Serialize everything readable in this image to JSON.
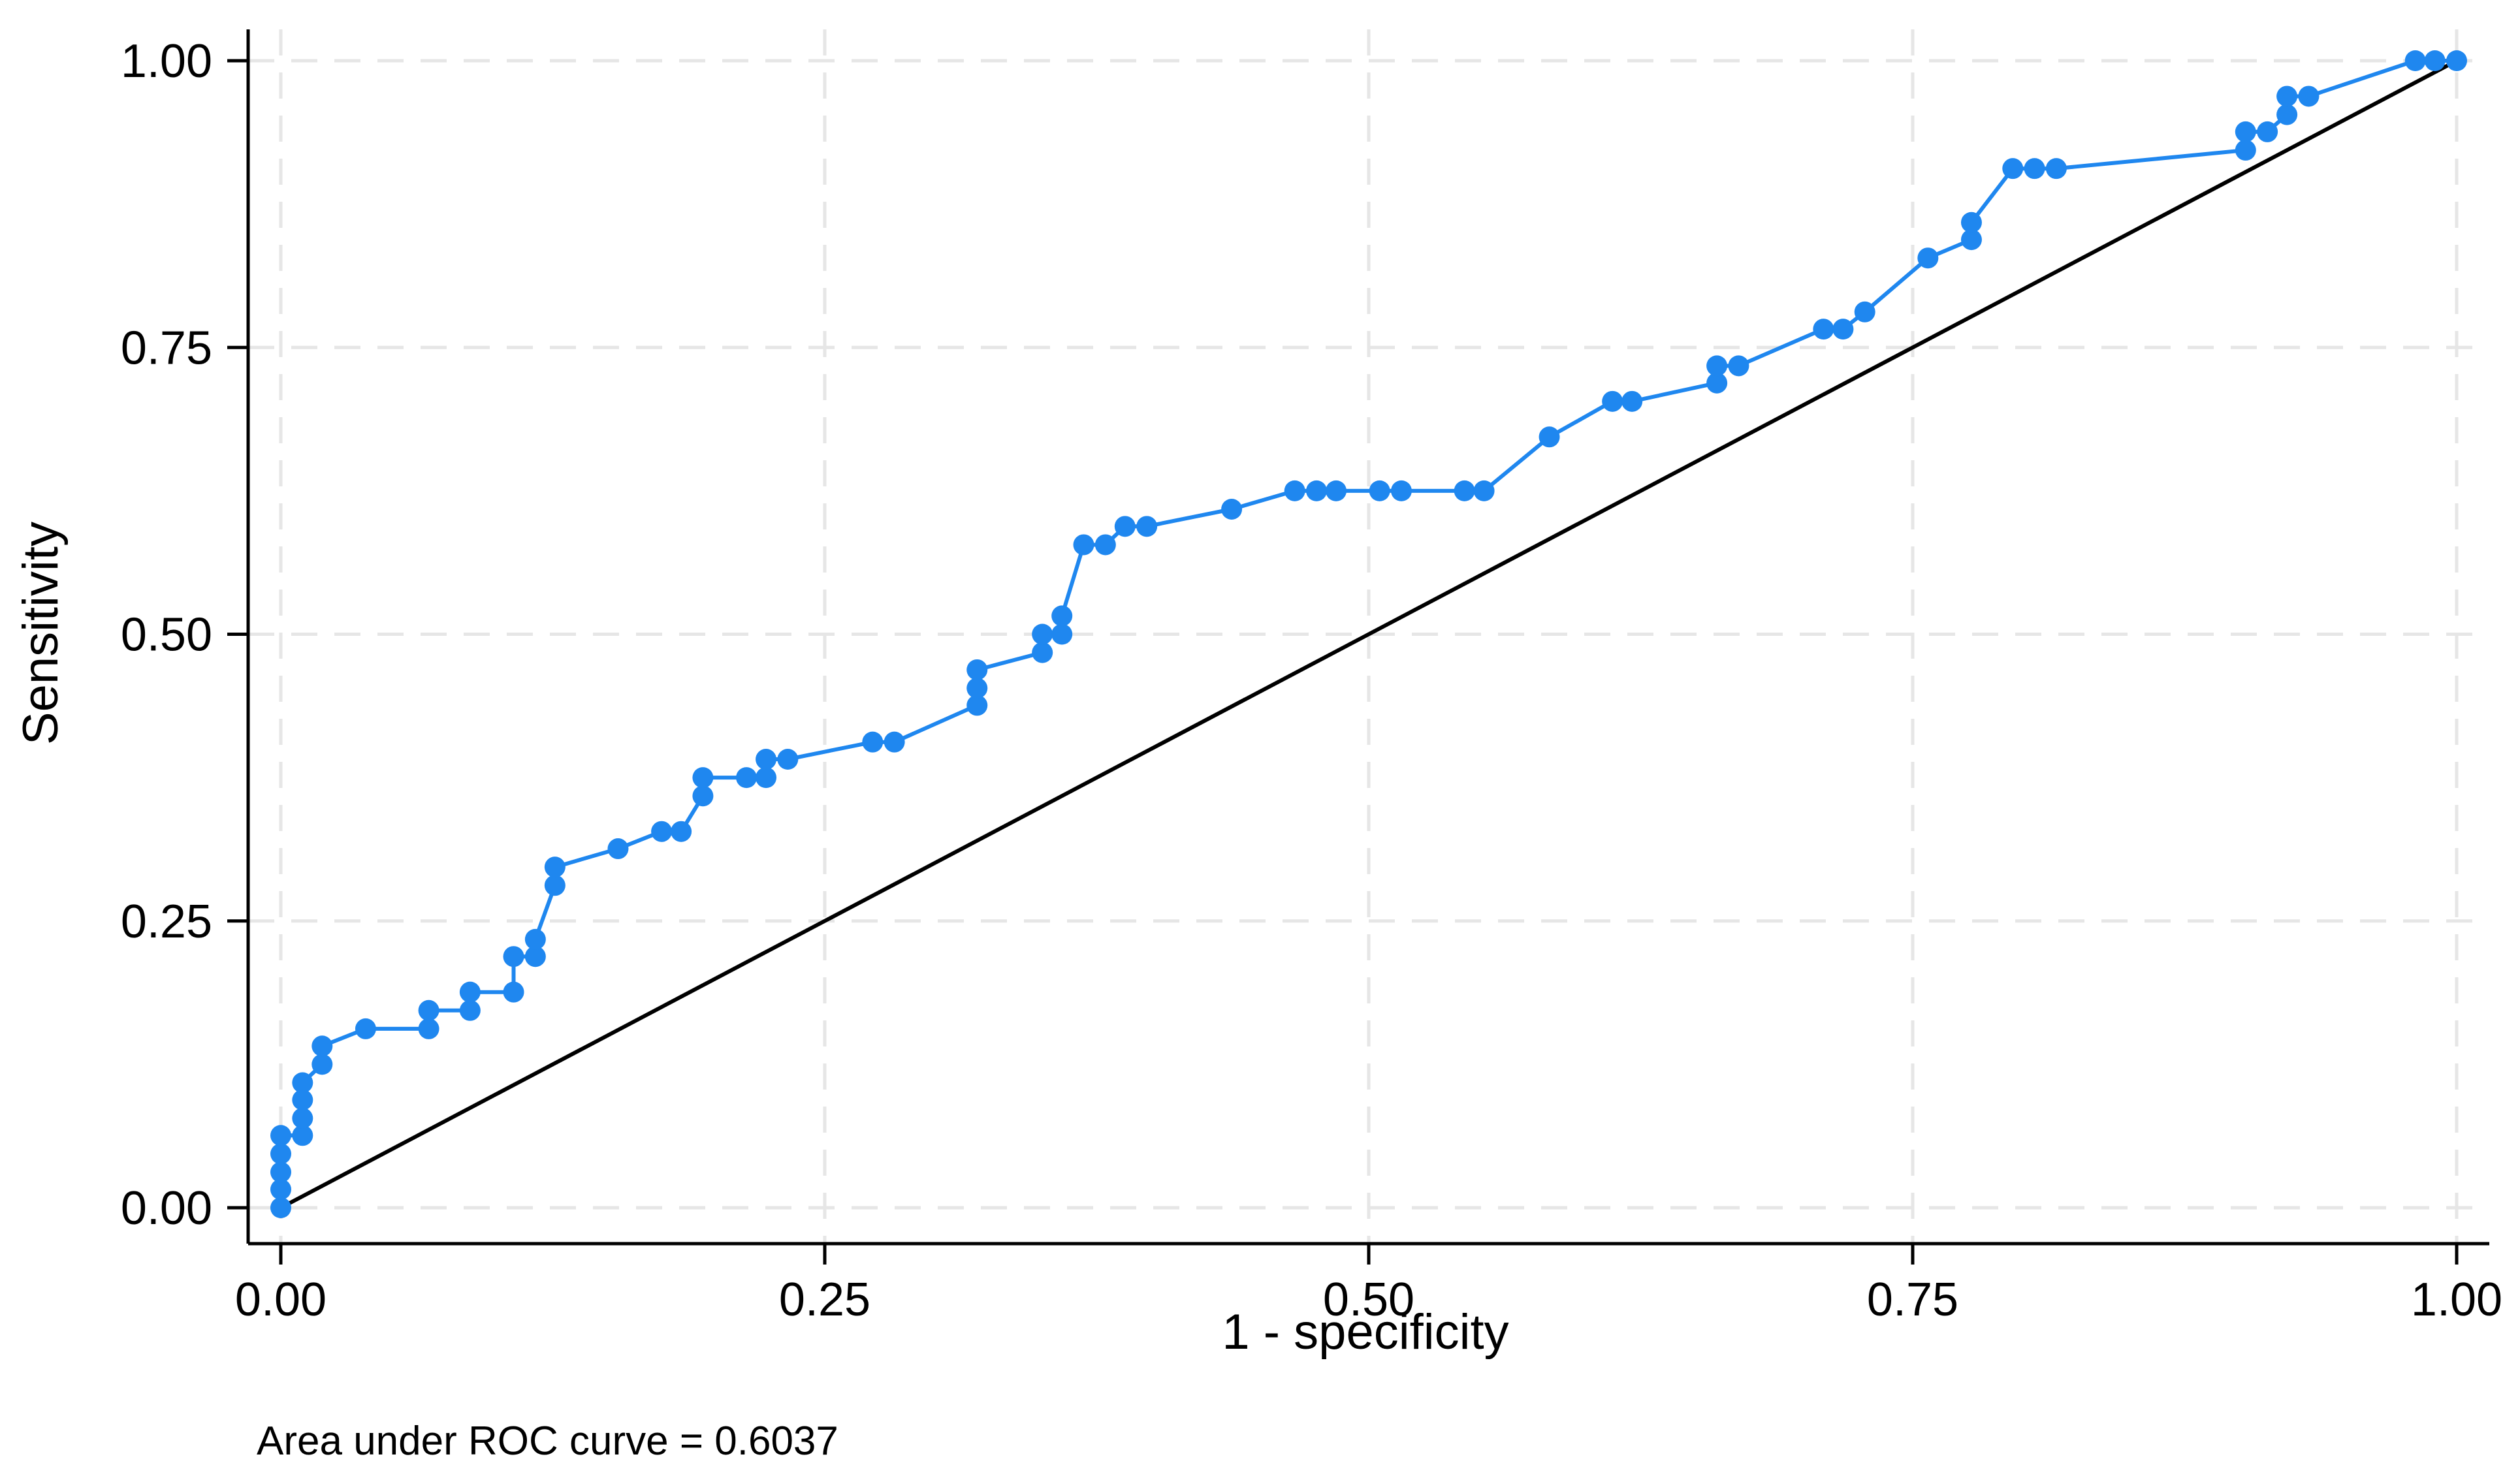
{
  "chart_data": {
    "type": "line",
    "xlabel": "1 - specificity",
    "ylabel": "Sensitivity",
    "xlim": [
      0,
      1
    ],
    "ylim": [
      0,
      1
    ],
    "xticks": [
      "0.00",
      "0.25",
      "0.50",
      "0.75",
      "1.00"
    ],
    "yticks": [
      "0.00",
      "0.25",
      "0.50",
      "0.75",
      "1.00"
    ],
    "grid": true,
    "note": "Area under ROC curve = 0.6037",
    "reference_line": {
      "from": [
        0,
        0
      ],
      "to": [
        1,
        1
      ],
      "color": "#000000"
    },
    "series": [
      {
        "color": "#1f87ef",
        "points": [
          [
            0.0,
            0.0
          ],
          [
            0.0,
            0.016
          ],
          [
            0.0,
            0.031
          ],
          [
            0.0,
            0.047
          ],
          [
            0.0,
            0.063
          ],
          [
            0.01,
            0.063
          ],
          [
            0.01,
            0.078
          ],
          [
            0.01,
            0.094
          ],
          [
            0.01,
            0.109
          ],
          [
            0.019,
            0.125
          ],
          [
            0.019,
            0.141
          ],
          [
            0.039,
            0.156
          ],
          [
            0.068,
            0.156
          ],
          [
            0.068,
            0.172
          ],
          [
            0.087,
            0.172
          ],
          [
            0.087,
            0.188
          ],
          [
            0.107,
            0.188
          ],
          [
            0.107,
            0.219
          ],
          [
            0.117,
            0.219
          ],
          [
            0.117,
            0.234
          ],
          [
            0.126,
            0.281
          ],
          [
            0.126,
            0.297
          ],
          [
            0.155,
            0.313
          ],
          [
            0.175,
            0.328
          ],
          [
            0.184,
            0.328
          ],
          [
            0.194,
            0.359
          ],
          [
            0.194,
            0.375
          ],
          [
            0.214,
            0.375
          ],
          [
            0.223,
            0.375
          ],
          [
            0.223,
            0.391
          ],
          [
            0.233,
            0.391
          ],
          [
            0.272,
            0.406
          ],
          [
            0.282,
            0.406
          ],
          [
            0.32,
            0.438
          ],
          [
            0.32,
            0.453
          ],
          [
            0.32,
            0.469
          ],
          [
            0.35,
            0.484
          ],
          [
            0.35,
            0.5
          ],
          [
            0.359,
            0.5
          ],
          [
            0.359,
            0.516
          ],
          [
            0.369,
            0.578
          ],
          [
            0.379,
            0.578
          ],
          [
            0.388,
            0.594
          ],
          [
            0.398,
            0.594
          ],
          [
            0.437,
            0.609
          ],
          [
            0.466,
            0.625
          ],
          [
            0.476,
            0.625
          ],
          [
            0.485,
            0.625
          ],
          [
            0.505,
            0.625
          ],
          [
            0.515,
            0.625
          ],
          [
            0.544,
            0.625
          ],
          [
            0.553,
            0.625
          ],
          [
            0.583,
            0.672
          ],
          [
            0.612,
            0.703
          ],
          [
            0.621,
            0.703
          ],
          [
            0.66,
            0.719
          ],
          [
            0.66,
            0.734
          ],
          [
            0.67,
            0.734
          ],
          [
            0.709,
            0.766
          ],
          [
            0.718,
            0.766
          ],
          [
            0.728,
            0.781
          ],
          [
            0.757,
            0.828
          ],
          [
            0.777,
            0.844
          ],
          [
            0.777,
            0.859
          ],
          [
            0.796,
            0.906
          ],
          [
            0.806,
            0.906
          ],
          [
            0.816,
            0.906
          ],
          [
            0.903,
            0.922
          ],
          [
            0.903,
            0.938
          ],
          [
            0.913,
            0.938
          ],
          [
            0.922,
            0.953
          ],
          [
            0.922,
            0.969
          ],
          [
            0.932,
            0.969
          ],
          [
            0.981,
            1.0
          ],
          [
            0.99,
            1.0
          ],
          [
            1.0,
            1.0
          ]
        ]
      }
    ]
  }
}
